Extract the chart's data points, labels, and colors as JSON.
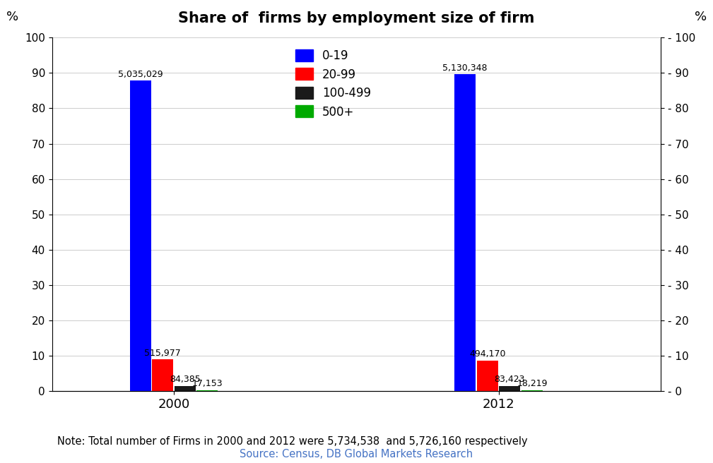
{
  "title": "Share of  firms by employment size of firm",
  "categories": [
    "2000",
    "2012"
  ],
  "series": [
    {
      "label": "0-19",
      "color": "#0000FF",
      "values": [
        87.8,
        89.6
      ],
      "counts": [
        "5,035,029",
        "5,130,348"
      ]
    },
    {
      "label": "20-99",
      "color": "#FF0000",
      "values": [
        9.0,
        8.63
      ],
      "counts": [
        "515,977",
        "494,170"
      ]
    },
    {
      "label": "100-499",
      "color": "#1A1A1A",
      "values": [
        1.47,
        1.46
      ],
      "counts": [
        "84,385",
        "83,423"
      ]
    },
    {
      "label": "500+",
      "color": "#00AA00",
      "values": [
        0.3,
        0.32
      ],
      "counts": [
        "17,153",
        "18,219"
      ]
    }
  ],
  "ylim": [
    0,
    100
  ],
  "yticks": [
    0,
    10,
    20,
    30,
    40,
    50,
    60,
    70,
    80,
    90,
    100
  ],
  "ylabel_left": "%",
  "ylabel_right": "%",
  "note": "Note: Total number of Firms in 2000 and 2012 were 5,734,538  and 5,726,160 respectively",
  "source": "Source: Census, DB Global Markets Research",
  "background_color": "#FFFFFF",
  "bar_width": 0.07,
  "group_centers": [
    1.0,
    2.6
  ],
  "xlim": [
    0.4,
    3.4
  ],
  "offsets": [
    -0.165,
    -0.055,
    0.055,
    0.165
  ]
}
